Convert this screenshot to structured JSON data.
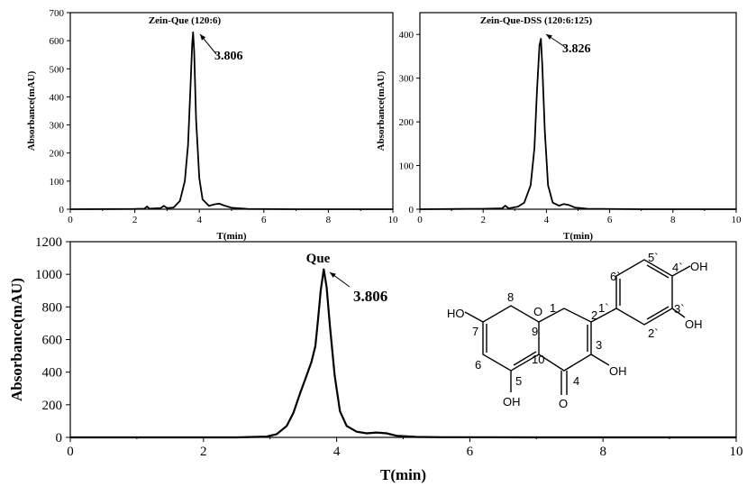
{
  "chart_data": [
    {
      "type": "line",
      "title": "Zein-Que (120:6)",
      "xlabel": "T(min)",
      "ylabel": "Absorbance(mAU)",
      "xlim": [
        0,
        10
      ],
      "ylim": [
        0,
        700
      ],
      "x_ticks": [
        0,
        2,
        4,
        6,
        8,
        10
      ],
      "y_ticks": [
        0,
        100,
        200,
        300,
        400,
        500,
        600,
        700
      ],
      "grid": false,
      "peak_label": "3.806",
      "peak": {
        "x": 3.806,
        "y": 630
      },
      "series": [
        {
          "x": [
            0,
            2.0,
            2.3,
            2.38,
            2.45,
            2.8,
            2.9,
            3.0,
            3.2,
            3.4,
            3.55,
            3.65,
            3.72,
            3.78,
            3.806,
            3.84,
            3.9,
            4.0,
            4.1,
            4.3,
            4.5,
            4.62,
            4.75,
            5.0,
            5.5,
            7.0,
            10.0
          ],
          "y": [
            0,
            1,
            2,
            10,
            2,
            4,
            12,
            4,
            6,
            30,
            100,
            230,
            420,
            590,
            630,
            560,
            320,
            110,
            35,
            12,
            18,
            20,
            14,
            5,
            1,
            0,
            0
          ]
        }
      ]
    },
    {
      "type": "line",
      "title": "Zein-Que-DSS (120:6:125)",
      "xlabel": "T(min)",
      "ylabel": "Absorbance(mAU)",
      "xlim": [
        0,
        10
      ],
      "ylim": [
        0,
        450
      ],
      "x_ticks": [
        0,
        2,
        4,
        6,
        8,
        10
      ],
      "y_ticks": [
        0,
        100,
        200,
        300,
        400
      ],
      "grid": false,
      "peak_label": "3.826",
      "peak": {
        "x": 3.826,
        "y": 390
      },
      "series": [
        {
          "x": [
            0,
            2.0,
            2.6,
            2.7,
            2.8,
            2.95,
            3.1,
            3.3,
            3.5,
            3.62,
            3.7,
            3.78,
            3.826,
            3.87,
            3.95,
            4.05,
            4.2,
            4.4,
            4.55,
            4.7,
            4.9,
            5.3,
            7.0,
            10.0
          ],
          "y": [
            0,
            1,
            2,
            8,
            2,
            4,
            6,
            15,
            55,
            140,
            270,
            375,
            390,
            330,
            180,
            55,
            15,
            8,
            12,
            10,
            4,
            1,
            0,
            0
          ]
        }
      ]
    },
    {
      "type": "line",
      "title": "Que",
      "xlabel": "T(min)",
      "ylabel": "Absorbance(mAU)",
      "xlim": [
        0,
        10
      ],
      "ylim": [
        0,
        1200
      ],
      "x_ticks": [
        0,
        2,
        4,
        6,
        8,
        10
      ],
      "y_ticks": [
        0,
        200,
        400,
        600,
        800,
        1000,
        1200
      ],
      "grid": false,
      "peak_label": "3.806",
      "peak": {
        "x": 3.806,
        "y": 1030
      },
      "series": [
        {
          "x": [
            0,
            2.5,
            2.95,
            3.1,
            3.25,
            3.35,
            3.45,
            3.55,
            3.62,
            3.68,
            3.72,
            3.76,
            3.806,
            3.85,
            3.9,
            3.97,
            4.05,
            4.15,
            4.3,
            4.45,
            4.6,
            4.75,
            4.9,
            5.2,
            5.6,
            7.0,
            10.0
          ],
          "y": [
            0,
            0,
            5,
            20,
            70,
            150,
            270,
            380,
            460,
            560,
            720,
            900,
            1030,
            920,
            680,
            380,
            160,
            70,
            35,
            25,
            30,
            25,
            10,
            3,
            1,
            0,
            0
          ]
        }
      ]
    }
  ],
  "structure": {
    "atoms": {
      "ho7": "HO",
      "o1": "O",
      "o4": "O",
      "oh3": "OH",
      "oh5": "OH",
      "oh3p": "OH",
      "oh4p": "OH"
    },
    "numbers": {
      "n1": "1",
      "n2": "2",
      "n3": "3",
      "n4": "4",
      "n5": "5",
      "n6": "6",
      "n7": "7",
      "n8": "8",
      "n9": "9",
      "n10": "10",
      "n1p": "1`",
      "n2p": "2`",
      "n3p": "3`",
      "n4p": "4`",
      "n5p": "5`",
      "n6p": "6`"
    }
  }
}
